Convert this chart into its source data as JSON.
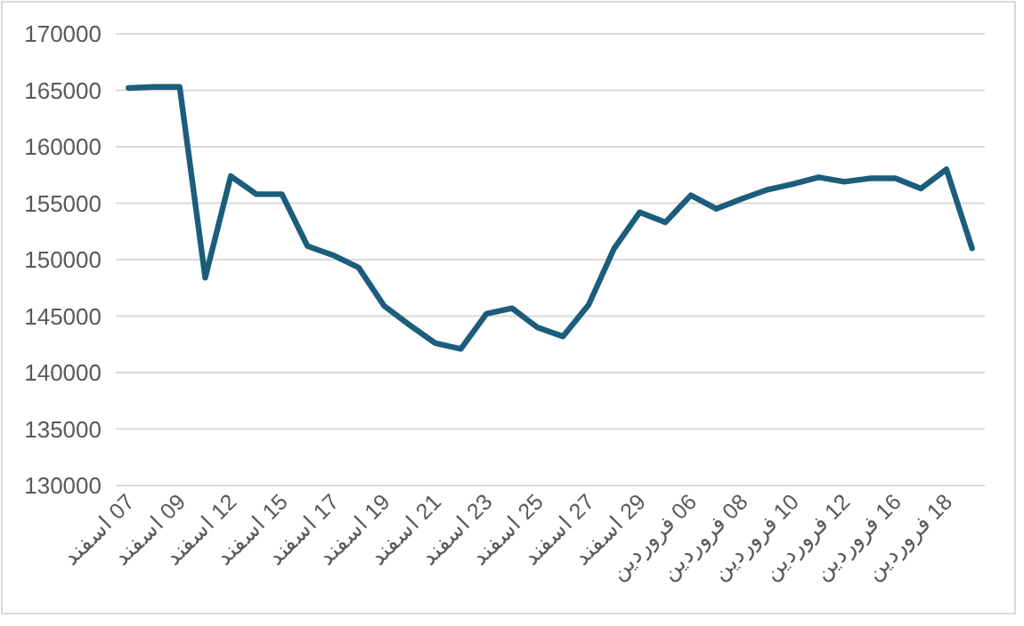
{
  "chart_data": {
    "type": "line",
    "categories": [
      "07 اسفند",
      null,
      "09 اسفند",
      null,
      "12 اسفند",
      null,
      "15 اسفند",
      null,
      "17 اسفند",
      null,
      "19 اسفند",
      null,
      "21 اسفند",
      null,
      "23 اسفند",
      null,
      "25 اسفند",
      null,
      "27 اسفند",
      null,
      "29 اسفند",
      null,
      "06 فروردین",
      null,
      "08 فروردین",
      null,
      "10 فروردین",
      null,
      "12 فروردین",
      null,
      "16 فروردین",
      null,
      "18 فروردین",
      null
    ],
    "values": [
      165200,
      165300,
      165300,
      148400,
      157400,
      155800,
      155800,
      151200,
      150400,
      149300,
      145900,
      144200,
      142600,
      142100,
      145200,
      145700,
      144000,
      143200,
      146000,
      151000,
      154200,
      153300,
      155700,
      154500,
      155400,
      156200,
      156700,
      157300,
      156900,
      157200,
      157200,
      156300,
      158000,
      151000
    ],
    "color": "#1c5d7b",
    "ylim": [
      130000,
      170000
    ],
    "yticks": [
      130000,
      135000,
      140000,
      145000,
      150000,
      155000,
      160000,
      165000,
      170000
    ],
    "grid": "y",
    "marker": "none",
    "line_style": "solid"
  }
}
